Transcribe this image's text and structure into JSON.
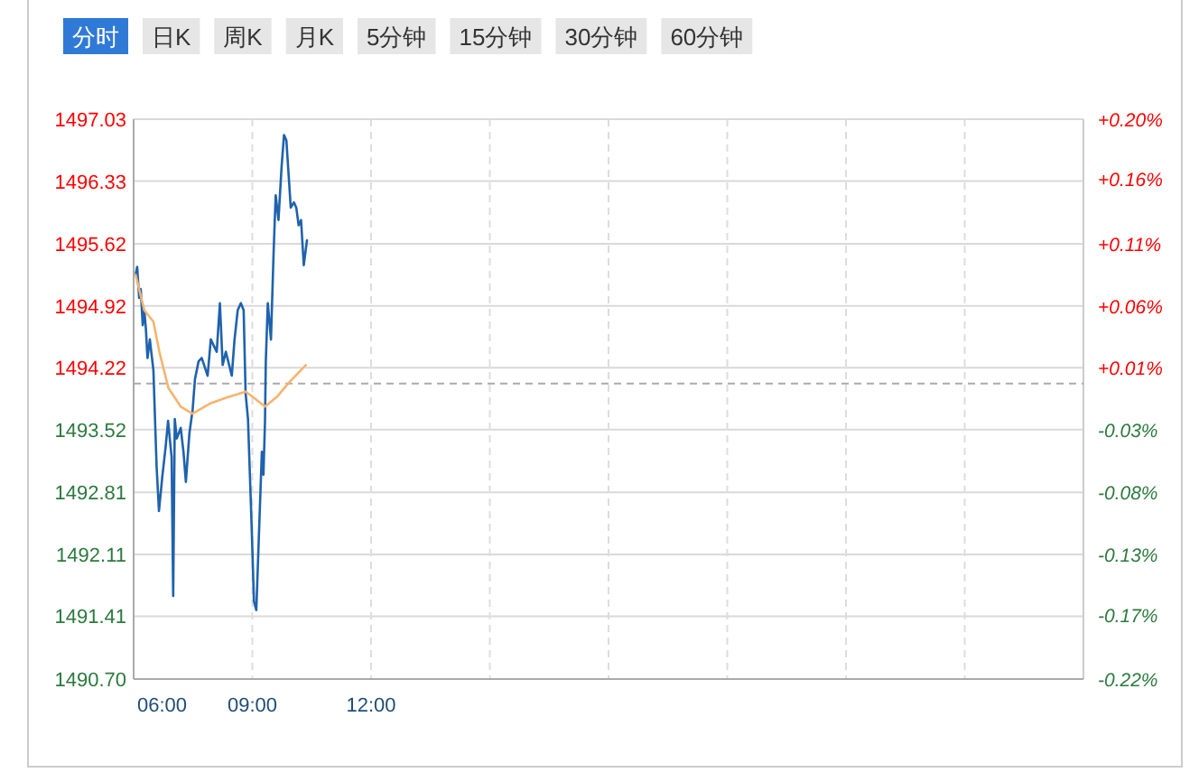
{
  "chart_data": {
    "type": "line",
    "annotations": [
      "分时",
      "日K",
      "周K",
      "月K",
      "5分钟",
      "15分钟",
      "30分钟",
      "60分钟"
    ],
    "xlim": [
      6,
      30
    ],
    "xticks": [
      {
        "value": 6,
        "label": "06:00"
      },
      {
        "value": 9,
        "label": "09:00"
      },
      {
        "value": 12,
        "label": "12:00"
      },
      {
        "value": 15,
        "label": null
      },
      {
        "value": 18,
        "label": null
      },
      {
        "value": 21,
        "label": null
      },
      {
        "value": 24,
        "label": null
      },
      {
        "value": 27,
        "label": null
      }
    ],
    "ylim": [
      1490.7,
      1497.03
    ],
    "yticks": [
      {
        "value": 1490.7,
        "label": "1490.70"
      },
      {
        "value": 1491.41,
        "label": "1491.41"
      },
      {
        "value": 1492.11,
        "label": "1492.11"
      },
      {
        "value": 1492.81,
        "label": "1492.81"
      },
      {
        "value": 1493.52,
        "label": "1493.52"
      },
      {
        "value": 1494.22,
        "label": "1494.22"
      },
      {
        "value": 1494.92,
        "label": "1494.92"
      },
      {
        "value": 1495.62,
        "label": "1495.62"
      },
      {
        "value": 1496.33,
        "label": "1496.33"
      },
      {
        "value": 1497.03,
        "label": "1497.03"
      }
    ],
    "y2lim": [
      -0.2236,
      0.2001
    ],
    "y2ticks": [
      {
        "value": -0.2236,
        "label": "-0.22%"
      },
      {
        "value": -0.1749,
        "label": "-0.17%"
      },
      {
        "value": -0.1292,
        "label": "-0.13%"
      },
      {
        "value": -0.0823,
        "label": "-0.08%"
      },
      {
        "value": -0.0348,
        "label": "-0.03%"
      },
      {
        "value": 0.012,
        "label": "+0.01%"
      },
      {
        "value": 0.0589,
        "label": "+0.06%"
      },
      {
        "value": 0.1058,
        "label": "+0.11%"
      },
      {
        "value": 0.155,
        "label": "+0.16%"
      },
      {
        "value": 0.2001,
        "label": "+0.20%"
      }
    ],
    "grid": true,
    "ref_lines": [
      {
        "axis": "y",
        "value": 1494.04,
        "color": "#aaaaaa",
        "line_style": "dashed"
      }
    ],
    "series": [
      {
        "color": "#1f62ad",
        "x": [
          6.05,
          6.09,
          6.14,
          6.18,
          6.23,
          6.27,
          6.31,
          6.35,
          6.41,
          6.5,
          6.58,
          6.64,
          6.73,
          6.81,
          6.87,
          6.96,
          7.0,
          7.04,
          7.09,
          7.19,
          7.26,
          7.32,
          7.41,
          7.49,
          7.55,
          7.64,
          7.72,
          7.87,
          7.95,
          8.1,
          8.18,
          8.25,
          8.33,
          8.48,
          8.55,
          8.63,
          8.71,
          8.78,
          8.83,
          8.89,
          8.98,
          9.04,
          9.1,
          9.16,
          9.24,
          9.28,
          9.32,
          9.34,
          9.39,
          9.47,
          9.54,
          9.59,
          9.66,
          9.74,
          9.8,
          9.86,
          9.92,
          9.97,
          10.05,
          10.11,
          10.17,
          10.23,
          10.3,
          10.38
        ],
        "values": [
          1495.27,
          1495.36,
          1495.01,
          1495.11,
          1494.7,
          1494.87,
          1494.66,
          1494.33,
          1494.54,
          1494.19,
          1493.11,
          1492.6,
          1493.01,
          1493.33,
          1493.62,
          1493.21,
          1491.64,
          1493.64,
          1493.42,
          1493.54,
          1493.27,
          1492.93,
          1493.48,
          1493.74,
          1494.09,
          1494.29,
          1494.33,
          1494.13,
          1494.54,
          1494.4,
          1494.95,
          1494.25,
          1494.4,
          1494.13,
          1494.54,
          1494.87,
          1494.95,
          1494.87,
          1493.93,
          1493.64,
          1492.46,
          1491.58,
          1491.48,
          1492.25,
          1493.27,
          1493.01,
          1493.62,
          1494.29,
          1494.95,
          1494.54,
          1495.56,
          1496.17,
          1495.89,
          1496.5,
          1496.85,
          1496.79,
          1496.38,
          1496.03,
          1496.09,
          1496.03,
          1495.83,
          1495.89,
          1495.38,
          1495.66
        ]
      },
      {
        "color": "#f5b46e",
        "x": [
          6.05,
          6.27,
          6.5,
          6.65,
          6.88,
          7.19,
          7.49,
          7.95,
          8.4,
          8.83,
          9.01,
          9.32,
          9.62,
          9.92,
          10.35
        ],
        "values": [
          1495.27,
          1494.87,
          1494.74,
          1494.4,
          1493.99,
          1493.78,
          1493.7,
          1493.82,
          1493.89,
          1493.95,
          1493.89,
          1493.78,
          1493.89,
          1494.05,
          1494.25
        ]
      }
    ]
  }
}
